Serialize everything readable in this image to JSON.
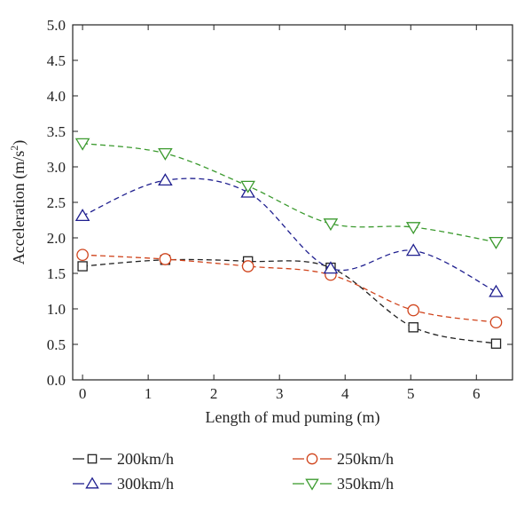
{
  "chart_data": {
    "type": "line",
    "title": "",
    "xlabel": "Length of mud puming (m)",
    "ylabel": "Acceleration (m/s",
    "ylabel_sup": "2",
    "ylabel_close": ")",
    "xlim": [
      -0.15,
      6.55
    ],
    "ylim": [
      0,
      5
    ],
    "xticks": [
      0,
      1,
      2,
      3,
      4,
      5,
      6
    ],
    "xtick_labels": [
      "0",
      "1",
      "2",
      "3",
      "4",
      "5",
      "6"
    ],
    "yticks": [
      0,
      0.5,
      1,
      1.5,
      2,
      2.5,
      3,
      3.5,
      4,
      4.5,
      5
    ],
    "ytick_labels": [
      "0.0",
      "0.5",
      "1.0",
      "1.5",
      "2.0",
      "2.5",
      "3.0",
      "3.5",
      "4.0",
      "4.5",
      "5.0"
    ],
    "grid": false,
    "legend_position": "below",
    "x": [
      0,
      1.26,
      2.52,
      3.78,
      5.04,
      6.3
    ],
    "series": [
      {
        "name": "200km/h",
        "color": "#222222",
        "marker": "square",
        "values": [
          1.6,
          1.69,
          1.67,
          1.58,
          0.74,
          0.51
        ]
      },
      {
        "name": "250km/h",
        "color": "#d0441c",
        "marker": "circle",
        "values": [
          1.76,
          1.7,
          1.6,
          1.48,
          0.98,
          0.81
        ]
      },
      {
        "name": "300km/h",
        "color": "#1f1f8f",
        "marker": "triangle-up",
        "values": [
          2.31,
          2.81,
          2.64,
          1.57,
          1.82,
          1.24
        ]
      },
      {
        "name": "350km/h",
        "color": "#3b9a2e",
        "marker": "triangle-down",
        "values": [
          3.33,
          3.19,
          2.73,
          2.2,
          2.15,
          1.94
        ]
      }
    ]
  }
}
